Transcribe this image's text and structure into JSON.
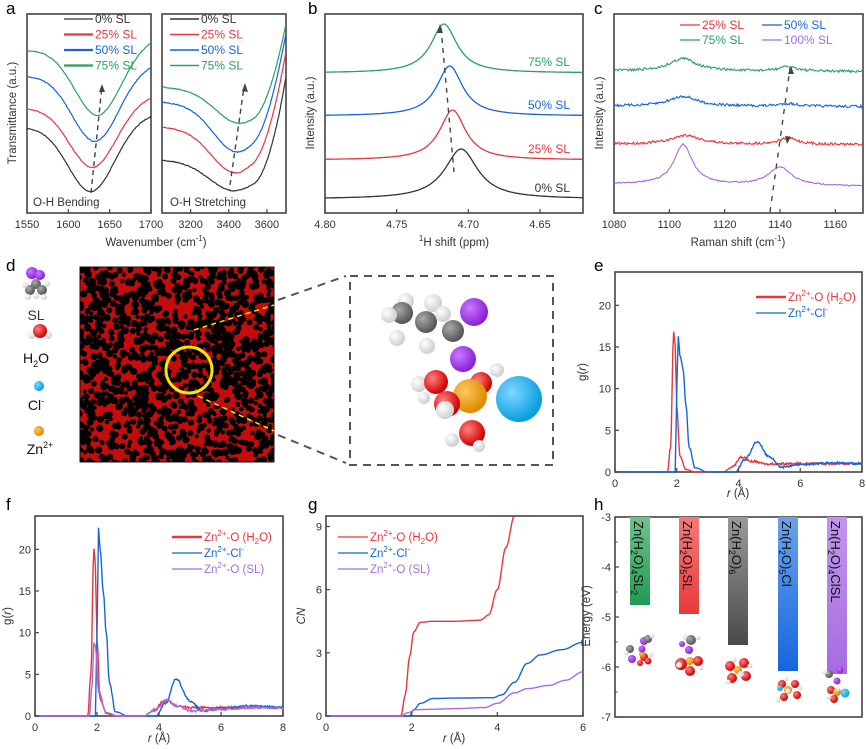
{
  "figure": {
    "panel_letters": [
      "a",
      "b",
      "c",
      "d",
      "e",
      "f",
      "g",
      "h"
    ]
  },
  "colors": {
    "black": "#333333",
    "red": "#e8363a",
    "blue": "#1565d8",
    "green": "#2aa061",
    "purple": "#a66be0",
    "yellow": "#f5e800",
    "orange": "#f0a010",
    "cyan": "#1ab0ee",
    "gray": "#777777"
  },
  "chart_data": [
    {
      "id": "a-left",
      "type": "line",
      "title": "",
      "annotation": "O-H Bending",
      "xlabel": "Wavenumber (cm⁻¹)",
      "ylabel": "Transmittance (a.u.)",
      "xlim": [
        1550,
        1700
      ],
      "xticks": [
        1550,
        1600,
        1650,
        1700
      ],
      "legend": [
        "0% SL",
        "25% SL",
        "50% SL",
        "75% SL"
      ],
      "legend_position": "top-right",
      "series": [
        {
          "name": "0% SL",
          "color": "black",
          "min_x": 1628,
          "offset": 0
        },
        {
          "name": "25% SL",
          "color": "red",
          "min_x": 1630,
          "offset": 1
        },
        {
          "name": "50% SL",
          "color": "blue",
          "min_x": 1633,
          "offset": 2
        },
        {
          "name": "75% SL",
          "color": "green",
          "min_x": 1636,
          "offset": 3
        }
      ],
      "arrow": "dashed, pointing up-right through minima"
    },
    {
      "id": "a-right",
      "type": "line",
      "annotation": "O-H Stretching",
      "xlim": [
        3050,
        3700
      ],
      "xticks": [
        3200,
        3400,
        3600
      ],
      "legend": [
        "0% SL",
        "25% SL",
        "50% SL",
        "75% SL"
      ],
      "legend_position": "top-left",
      "series": [
        {
          "name": "0% SL",
          "color": "black",
          "min_x": 3420,
          "offset": 0
        },
        {
          "name": "25% SL",
          "color": "red",
          "min_x": 3430,
          "offset": 1
        },
        {
          "name": "50% SL",
          "color": "blue",
          "min_x": 3440,
          "offset": 2
        },
        {
          "name": "75% SL",
          "color": "green",
          "min_x": 3450,
          "offset": 3
        }
      ]
    },
    {
      "id": "b",
      "type": "line",
      "xlabel": "¹H shift (ppm)",
      "ylabel": "Intensity (a.u.)",
      "xlim": [
        4.8,
        4.62
      ],
      "xticks": [
        "4.80",
        "4.75",
        "4.70",
        "4.65"
      ],
      "series": [
        {
          "name": "0% SL",
          "color": "black",
          "peak_x": 4.705,
          "offset": 0
        },
        {
          "name": "25% SL",
          "color": "red",
          "peak_x": 4.711,
          "offset": 1
        },
        {
          "name": "50% SL",
          "color": "blue",
          "peak_x": 4.713,
          "offset": 2
        },
        {
          "name": "75% SL",
          "color": "green",
          "peak_x": 4.717,
          "offset": 3
        }
      ]
    },
    {
      "id": "c",
      "type": "line",
      "xlabel": "Raman shift (cm⁻¹)",
      "ylabel": "Intensity (a.u.)",
      "xlim": [
        1080,
        1170
      ],
      "xticks": [
        1080,
        1100,
        1120,
        1140,
        1160
      ],
      "legend": [
        "25% SL",
        "50% SL",
        "75% SL",
        "100% SL"
      ],
      "legend_position": "top-right",
      "series": [
        {
          "name": "100% SL",
          "color": "purple",
          "peaks": [
            1105,
            1140
          ],
          "offset": 0
        },
        {
          "name": "25% SL",
          "color": "red",
          "peaks": [
            1106,
            1143
          ],
          "offset": 1
        },
        {
          "name": "50% SL",
          "color": "blue",
          "peaks": [
            1105,
            1143
          ],
          "offset": 2
        },
        {
          "name": "75% SL",
          "color": "green",
          "peaks": [
            1105,
            1143
          ],
          "offset": 3
        }
      ]
    },
    {
      "id": "e",
      "type": "line",
      "xlabel": "r (Å)",
      "ylabel": "g(r)",
      "xlim": [
        0,
        8
      ],
      "ylim": [
        0,
        24
      ],
      "xticks": [
        0,
        2,
        4,
        6,
        8
      ],
      "yticks": [
        0,
        5,
        10,
        15,
        20
      ],
      "legend": [
        "Zn²⁺-O (H₂O)",
        "Zn²⁺-Cl⁻"
      ],
      "legend_position": "top-right",
      "series": [
        {
          "name": "Zn2+-O (H2O)",
          "color": "red",
          "x": [
            0,
            1.7,
            1.8,
            1.9,
            1.95,
            2.0,
            2.1,
            2.3,
            2.6,
            3.5,
            3.8,
            4.1,
            4.4,
            5.0,
            6.0,
            7.0,
            8.0
          ],
          "y": [
            0,
            0,
            3,
            16.8,
            15,
            8,
            2,
            0.3,
            0,
            0,
            0.6,
            1.8,
            1.3,
            0.95,
            1.0,
            1.0,
            1.0
          ]
        },
        {
          "name": "Zn2+-Cl-",
          "color": "blue",
          "x": [
            0,
            1.95,
            2.0,
            2.05,
            2.1,
            2.2,
            2.3,
            2.4,
            2.6,
            3.0,
            3.9,
            4.2,
            4.6,
            5.0,
            5.4,
            6.0,
            7.0,
            8.0
          ],
          "y": [
            0,
            0,
            10,
            16.3,
            14,
            12.5,
            8,
            3,
            0.5,
            0,
            0,
            1.5,
            3.6,
            1.8,
            0.6,
            0.9,
            1.1,
            1.0
          ]
        }
      ]
    },
    {
      "id": "f",
      "type": "line",
      "xlabel": "r (Å)",
      "ylabel": "g(r)",
      "xlim": [
        0,
        8
      ],
      "ylim": [
        0,
        24
      ],
      "xticks": [
        0,
        2,
        4,
        6,
        8
      ],
      "yticks": [
        0,
        5,
        10,
        15,
        20
      ],
      "legend": [
        "Zn²⁺-O (H₂O)",
        "Zn²⁺-Cl⁻",
        "Zn²⁺-O (SL)"
      ],
      "legend_position": "top-right",
      "series": [
        {
          "name": "Zn2+-O (H2O)",
          "color": "red",
          "x": [
            0,
            1.7,
            1.8,
            1.9,
            1.95,
            2.0,
            2.1,
            2.3,
            2.6,
            3.5,
            3.8,
            4.2,
            4.6,
            5.0,
            6.0,
            7.0,
            8.0
          ],
          "y": [
            0,
            0,
            5,
            20,
            18,
            9,
            2,
            0.3,
            0,
            0,
            0.6,
            1.9,
            1.2,
            1.0,
            1.0,
            1.0,
            1.0
          ]
        },
        {
          "name": "Zn2+-Cl-",
          "color": "blue",
          "x": [
            0,
            1.95,
            2.0,
            2.05,
            2.1,
            2.2,
            2.3,
            2.4,
            2.6,
            3.0,
            3.9,
            4.2,
            4.55,
            5.0,
            5.4,
            6.0,
            7.0,
            8.0
          ],
          "y": [
            0,
            0,
            10,
            22.7,
            20,
            15,
            10,
            4,
            0.5,
            0,
            0,
            1.5,
            4.4,
            1.8,
            0.6,
            0.9,
            1.2,
            1.0
          ]
        },
        {
          "name": "Zn2+-O (SL)",
          "color": "purple",
          "x": [
            0,
            1.75,
            1.85,
            1.9,
            1.95,
            2.05,
            2.3,
            2.7,
            3.5,
            3.9,
            4.25,
            4.6,
            5.0,
            6.0,
            7.0,
            8.0
          ],
          "y": [
            0,
            0,
            4,
            8.9,
            8.5,
            3,
            0.4,
            0,
            0,
            0.8,
            1.9,
            1.2,
            0.6,
            0.8,
            1.0,
            1.0
          ]
        }
      ]
    },
    {
      "id": "g",
      "type": "line",
      "xlabel": "r (Å)",
      "ylabel": "CN",
      "xlim": [
        0,
        6
      ],
      "ylim": [
        0,
        9.5
      ],
      "xticks": [
        0,
        2,
        4,
        6
      ],
      "yticks": [
        0,
        3,
        6,
        9
      ],
      "legend": [
        "Zn²⁺-O (H₂O)",
        "Zn²⁺-Cl⁻",
        "Zn²⁺-O (SL)"
      ],
      "legend_position": "top-left",
      "series": [
        {
          "name": "Zn2+-O (H2O)",
          "color": "red",
          "x": [
            0,
            1.75,
            1.85,
            1.95,
            2.05,
            2.2,
            2.5,
            3.0,
            3.6,
            3.8,
            4.0,
            4.2,
            4.4
          ],
          "y": [
            0,
            0,
            1.0,
            2.8,
            4.0,
            4.45,
            4.5,
            4.5,
            4.55,
            4.8,
            6.0,
            8.0,
            9.5
          ]
        },
        {
          "name": "Zn2+-Cl-",
          "color": "blue",
          "x": [
            0,
            1.95,
            2.05,
            2.2,
            2.5,
            3.0,
            3.9,
            4.1,
            4.4,
            4.7,
            5.0,
            5.5,
            6.0
          ],
          "y": [
            0,
            0,
            0.3,
            0.6,
            0.83,
            0.85,
            0.87,
            1.0,
            1.6,
            2.5,
            2.9,
            3.15,
            3.5
          ]
        },
        {
          "name": "Zn2+-O (SL)",
          "color": "purple",
          "x": [
            0,
            1.75,
            1.9,
            2.1,
            2.5,
            3.0,
            3.7,
            4.0,
            4.4,
            4.7,
            5.2,
            5.6,
            6.0
          ],
          "y": [
            0,
            0,
            0.15,
            0.3,
            0.32,
            0.35,
            0.4,
            0.6,
            1.1,
            1.3,
            1.45,
            1.7,
            2.1
          ]
        }
      ]
    },
    {
      "id": "h",
      "type": "bar",
      "ylabel": "Energy (eV)",
      "ylim": [
        -7,
        -3
      ],
      "yticks": [
        -3,
        -4,
        -5,
        -6,
        -7
      ],
      "categories": [
        "Zn(H2O)4SL2",
        "Zn(H2O)5SL",
        "Zn(H2O)6",
        "Zn(H2O)5Cl",
        "Zn(H2O)4ClSL"
      ],
      "category_labels": [
        {
          "main": "Zn(H",
          "sub1": "2",
          "mid": "O)",
          "sub2": "4",
          "tail": "SL",
          "sub3": "2"
        },
        {
          "main": "Zn(H",
          "sub1": "2",
          "mid": "O)",
          "sub2": "5",
          "tail": "SL",
          "sub3": ""
        },
        {
          "main": "Zn(H",
          "sub1": "2",
          "mid": "O)",
          "sub2": "6",
          "tail": "",
          "sub3": ""
        },
        {
          "main": "Zn(H",
          "sub1": "2",
          "mid": "O)",
          "sub2": "5",
          "tail": "Cl",
          "sub3": ""
        },
        {
          "main": "Zn(H",
          "sub1": "2",
          "mid": "O)",
          "sub2": "4",
          "tail": "ClSL",
          "sub3": ""
        }
      ],
      "values": [
        -4.76,
        -4.94,
        -5.56,
        -6.08,
        -6.14
      ],
      "bar_colors": [
        "green",
        "red",
        "gray",
        "blue",
        "purple"
      ]
    }
  ],
  "panel_d": {
    "legend": [
      {
        "label": "SL",
        "icon": "sulfolane-molecule-icon"
      },
      {
        "label": "H2O",
        "label_html": [
          "H",
          "2",
          "O"
        ],
        "icon": "water-molecule-icon"
      },
      {
        "label": "Cl-",
        "label_parts": [
          "Cl",
          "-"
        ],
        "icon": "chloride-ion-icon"
      },
      {
        "label": "Zn2+",
        "label_parts": [
          "Zn",
          "2+"
        ],
        "icon": "zinc-ion-icon"
      }
    ],
    "simulation_box": "MD simulation snapshot with highlighted solvation shell (yellow circle)",
    "zoom_box": "Zn2+ solvation structure: 4 H2O, 1 Cl-, 1 SL"
  },
  "texts": {
    "a_xlabel": "Wavenumber (cm",
    "a_xlabel_sup": "-1",
    "a_ylabel": "Transmittance (a.u.)",
    "a_left_annot": "O-H Bending",
    "a_right_annot": "O-H Stretching",
    "b_ylabel": "Intensity (a.u.)",
    "b_xlabel_sup": "1",
    "b_xlabel": "H shift (ppm)",
    "c_ylabel": "Intensity (a.u.)",
    "c_xlabel": "Raman shift (cm",
    "c_xlabel_sup": "-1",
    "r_label": "r",
    "r_unit": " (Å)",
    "g_ylabel": "g(",
    "g_ylabel_r": "r",
    "g_ylabel_end": ")",
    "cn_label": "CN",
    "h_ylabel": "Energy (eV)",
    "b_labels": [
      "0% SL",
      "25% SL",
      "50% SL",
      "75% SL"
    ],
    "leg_znO": "Zn",
    "leg_sup": "2+",
    "leg_O_h2o_a": "-O (H",
    "leg_O_h2o_sub": "2",
    "leg_O_h2o_b": "O)",
    "leg_cl": "-Cl",
    "leg_cl_sup": "-",
    "leg_sl": "-O (SL)"
  }
}
